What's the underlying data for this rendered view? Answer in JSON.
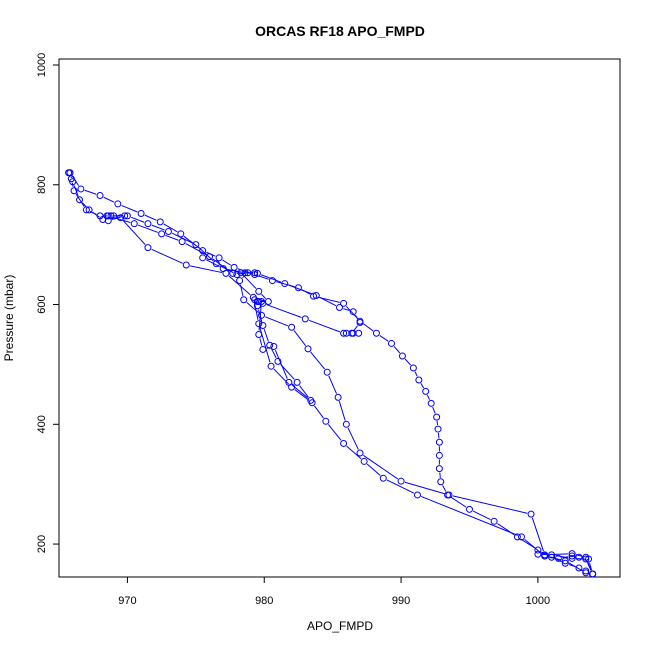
{
  "chart_data": {
    "type": "line",
    "title": "ORCAS RF18 APO_FMPD",
    "xlabel": "APO_FMPD",
    "ylabel": "Pressure (mbar)",
    "xlim": [
      965,
      1006
    ],
    "ylim": [
      1010,
      145
    ],
    "y_reversed": true,
    "xticks": [
      970,
      980,
      990,
      1000
    ],
    "yticks": [
      200,
      400,
      600,
      800,
      1000
    ],
    "grid": false,
    "color": "#0000ff",
    "series": [
      {
        "points": [
          [
            965.8,
            820
          ],
          [
            966.0,
            805
          ],
          [
            966.5,
            775
          ],
          [
            967.2,
            758
          ],
          [
            968.2,
            742
          ],
          [
            968.5,
            748
          ],
          [
            969.0,
            748
          ],
          [
            969.5,
            745
          ],
          [
            971.5,
            695
          ],
          [
            974.3,
            666
          ],
          [
            977.2,
            652
          ],
          [
            979.2,
            612
          ],
          [
            979.6,
            568
          ],
          [
            980.5,
            497
          ],
          [
            982.0,
            462
          ],
          [
            983.5,
            436
          ],
          [
            984.5,
            405
          ],
          [
            985.8,
            368
          ],
          [
            987.3,
            338
          ],
          [
            988.7,
            310
          ],
          [
            991.2,
            282
          ],
          [
            998.8,
            212
          ],
          [
            1000.5,
            180
          ],
          [
            1002.0,
            172
          ],
          [
            1003.5,
            152
          ],
          [
            1004.0,
            150
          ]
        ]
      },
      {
        "points": [
          [
            1004.0,
            150
          ],
          [
            1003.5,
            178
          ],
          [
            1002.5,
            184
          ],
          [
            1000.5,
            182
          ],
          [
            999.5,
            250
          ],
          [
            993.5,
            282
          ],
          [
            990.0,
            305
          ],
          [
            987.0,
            352
          ],
          [
            986.0,
            400
          ],
          [
            985.4,
            445
          ],
          [
            984.6,
            487
          ],
          [
            983.2,
            526
          ],
          [
            982.0,
            562
          ],
          [
            979.8,
            582
          ],
          [
            978.5,
            608
          ],
          [
            978.2,
            640
          ],
          [
            978.8,
            653
          ],
          [
            978.0,
            650
          ],
          [
            976.5,
            668
          ],
          [
            975.0,
            700
          ],
          [
            973.0,
            722
          ],
          [
            971.5,
            735
          ],
          [
            970.0,
            748
          ],
          [
            968.8,
            748
          ],
          [
            968.0,
            748
          ],
          [
            967.0,
            758
          ],
          [
            966.1,
            790
          ],
          [
            965.9,
            810
          ],
          [
            965.7,
            820
          ]
        ]
      },
      {
        "points": [
          [
            965.8,
            820
          ],
          [
            966.6,
            793
          ],
          [
            968.0,
            782
          ],
          [
            969.3,
            768
          ],
          [
            971.0,
            752
          ],
          [
            972.4,
            738
          ],
          [
            973.9,
            718
          ],
          [
            975.5,
            690
          ],
          [
            976.7,
            678
          ],
          [
            977.8,
            662
          ],
          [
            979.3,
            650
          ],
          [
            980.6,
            640
          ],
          [
            982.5,
            628
          ],
          [
            983.6,
            614
          ],
          [
            985.8,
            602
          ],
          [
            987.0,
            572
          ],
          [
            988.2,
            552
          ],
          [
            989.3,
            535
          ],
          [
            990.1,
            514
          ],
          [
            990.9,
            494
          ],
          [
            991.3,
            474
          ],
          [
            991.8,
            455
          ],
          [
            992.2,
            435
          ],
          [
            992.6,
            412
          ],
          [
            992.7,
            392
          ],
          [
            992.8,
            370
          ],
          [
            992.8,
            348
          ],
          [
            992.8,
            326
          ],
          [
            992.9,
            304
          ],
          [
            993.4,
            282
          ],
          [
            995.0,
            258
          ],
          [
            996.8,
            238
          ],
          [
            998.5,
            212
          ],
          [
            1000.0,
            190
          ],
          [
            1001.0,
            178
          ],
          [
            1002.0,
            168
          ],
          [
            1003.0,
            160
          ],
          [
            1003.5,
            155
          ],
          [
            1004.0,
            150
          ]
        ]
      },
      {
        "points": [
          [
            1004.0,
            150
          ],
          [
            1003.7,
            175
          ],
          [
            1002.5,
            176
          ],
          [
            1001.0,
            182
          ],
          [
            1000.0,
            183
          ],
          [
            1000.5,
            180
          ],
          [
            1001.5,
            176
          ],
          [
            1002.5,
            180
          ],
          [
            1003.0,
            178
          ],
          [
            1003.5,
            175
          ],
          [
            1004.0,
            150
          ]
        ]
      },
      {
        "points": [
          [
            986.5,
            552
          ],
          [
            986.0,
            552
          ],
          [
            985.8,
            552
          ],
          [
            983.0,
            576
          ],
          [
            979.9,
            602
          ],
          [
            979.5,
            605
          ],
          [
            980.3,
            605
          ],
          [
            979.6,
            622
          ],
          [
            978.3,
            653
          ],
          [
            979.3,
            653
          ],
          [
            977.7,
            652
          ],
          [
            976.0,
            680
          ],
          [
            974.0,
            705
          ],
          [
            972.5,
            718
          ],
          [
            970.5,
            735
          ],
          [
            968.6,
            748
          ],
          [
            969.8,
            748
          ],
          [
            968.6,
            740
          ]
        ]
      },
      {
        "points": [
          [
            986.9,
            552
          ],
          [
            986.4,
            552
          ],
          [
            987.0,
            570
          ],
          [
            986.5,
            588
          ],
          [
            985.5,
            595
          ],
          [
            983.8,
            615
          ],
          [
            981.5,
            635
          ],
          [
            979.5,
            652
          ],
          [
            978.6,
            653
          ],
          [
            977.0,
            660
          ],
          [
            975.5,
            678
          ]
        ]
      },
      {
        "points": [
          [
            979.6,
            605
          ],
          [
            979.8,
            605
          ],
          [
            979.6,
            550
          ],
          [
            979.9,
            525
          ],
          [
            980.7,
            530
          ],
          [
            981.8,
            470
          ],
          [
            983.4,
            440
          ],
          [
            982.4,
            470
          ],
          [
            981.0,
            505
          ],
          [
            980.4,
            532
          ],
          [
            979.9,
            565
          ],
          [
            979.5,
            598
          ],
          [
            979.3,
            608
          ]
        ]
      }
    ]
  }
}
